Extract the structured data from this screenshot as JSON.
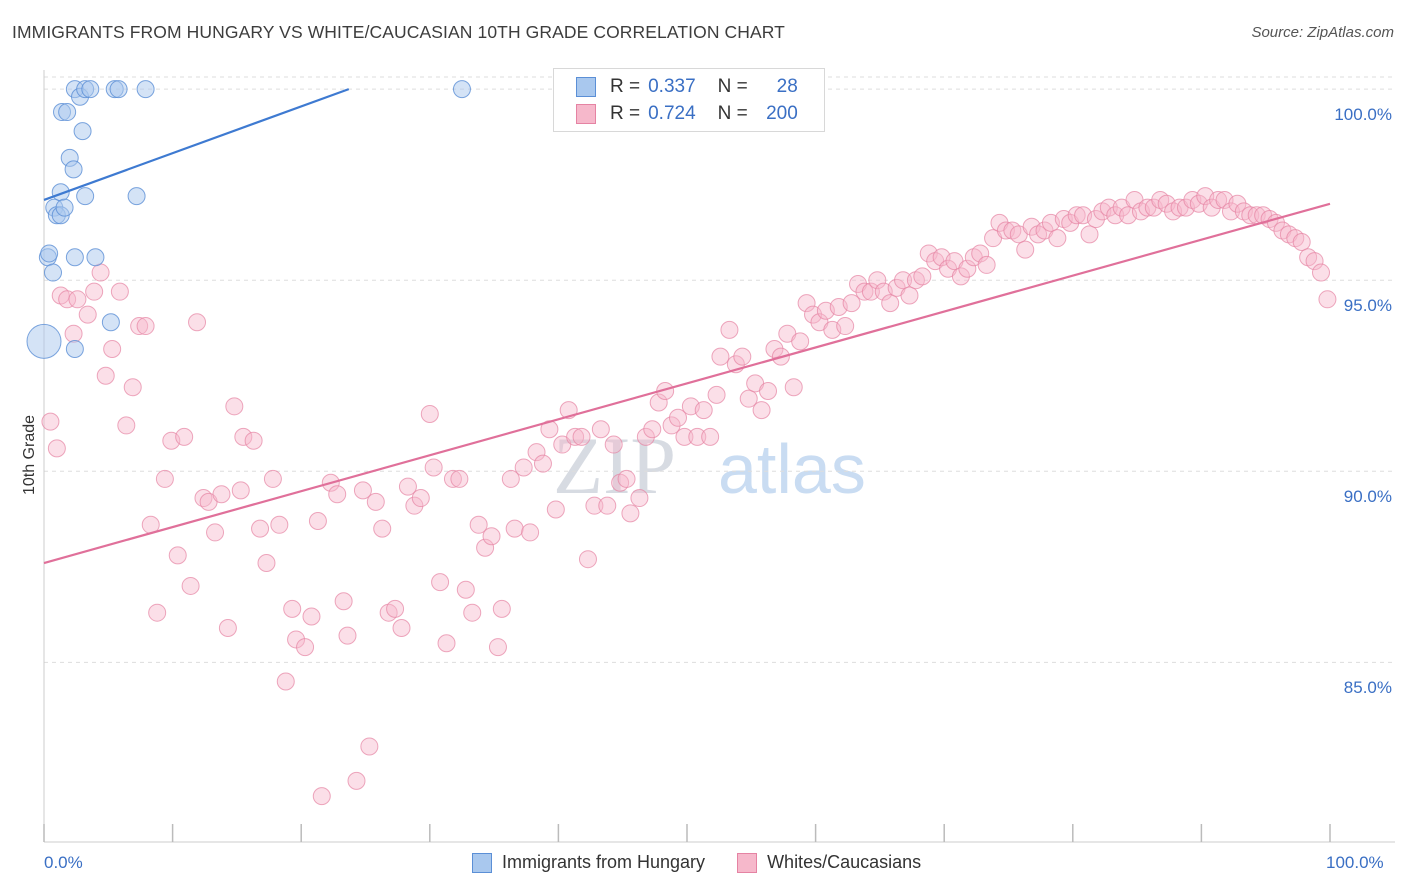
{
  "header": {
    "title": "IMMIGRANTS FROM HUNGARY VS WHITE/CAUCASIAN 10TH GRADE CORRELATION CHART",
    "source": "Source: ZipAtlas.com"
  },
  "watermark": {
    "zip": "ZIP",
    "atlas": "atlas"
  },
  "legend_top": {
    "rows": [
      {
        "r_label": "R =",
        "r_value": "0.337",
        "n_label": "N =",
        "n_value": "28"
      },
      {
        "r_label": "R =",
        "r_value": "0.724",
        "n_label": "N =",
        "n_value": "200"
      }
    ]
  },
  "legend_bottom": {
    "items": [
      "Immigrants from Hungary",
      "Whites/Caucasians"
    ]
  },
  "colors": {
    "blue_fill": "#a9c8ee",
    "blue_stroke": "#5b8fd6",
    "blue_line": "#3e7ad1",
    "pink_fill": "#f6b8cb",
    "pink_stroke": "#e583a3",
    "pink_line": "#e0709a",
    "tick_text": "#3a6fc4",
    "grid": "#dddddd"
  },
  "chart_data": {
    "type": "scatter",
    "title": "IMMIGRANTS FROM HUNGARY VS WHITE/CAUCASIAN 10TH GRADE CORRELATION CHART",
    "xlabel": "",
    "ylabel": "10th Grade",
    "xlim": [
      0,
      100
    ],
    "ylim": [
      80.3,
      100.5
    ],
    "x_tick_labels": [
      "0.0%",
      "100.0%"
    ],
    "y_ticks": [
      85,
      90,
      95,
      100
    ],
    "y_tick_labels": [
      "85.0%",
      "90.0%",
      "95.0%",
      "100.0%"
    ],
    "grid": true,
    "legend_position": "top-center",
    "series": [
      {
        "name": "Immigrants from Hungary",
        "color": "#a9c8ee",
        "r": 0.337,
        "n": 28,
        "trend": {
          "x": [
            0,
            23.7
          ],
          "y": [
            97.1,
            100.0
          ]
        },
        "points": [
          [
            0,
            93.4,
            3
          ],
          [
            0.3,
            95.6,
            1
          ],
          [
            0.4,
            95.7,
            1
          ],
          [
            0.7,
            95.2,
            1
          ],
          [
            0.8,
            96.9,
            1
          ],
          [
            1.0,
            96.7,
            1
          ],
          [
            1.3,
            96.7,
            1
          ],
          [
            1.3,
            97.3,
            1
          ],
          [
            1.4,
            99.4,
            1
          ],
          [
            1.6,
            96.9,
            1
          ],
          [
            1.8,
            99.4,
            1
          ],
          [
            2.0,
            98.2,
            1
          ],
          [
            2.3,
            97.9,
            1
          ],
          [
            2.4,
            95.6,
            1
          ],
          [
            2.4,
            93.2,
            1
          ],
          [
            2.4,
            100.0,
            1
          ],
          [
            2.8,
            99.8,
            1
          ],
          [
            3.0,
            98.9,
            1
          ],
          [
            3.2,
            100.0,
            1
          ],
          [
            3.2,
            97.2,
            1
          ],
          [
            3.6,
            100.0,
            1
          ],
          [
            4.0,
            95.6,
            1
          ],
          [
            5.2,
            93.9,
            1
          ],
          [
            5.5,
            100.0,
            1
          ],
          [
            5.8,
            100.0,
            1
          ],
          [
            7.2,
            97.2,
            1
          ],
          [
            7.9,
            100.0,
            1
          ],
          [
            32.5,
            100.0,
            1
          ]
        ]
      },
      {
        "name": "Whites/Caucasians",
        "color": "#f6b8cb",
        "r": 0.724,
        "n": 200,
        "trend": {
          "x": [
            0,
            100
          ],
          "y": [
            87.6,
            97.0
          ]
        },
        "points": [
          [
            0.5,
            91.3
          ],
          [
            1.0,
            90.6
          ],
          [
            1.3,
            94.6
          ],
          [
            1.8,
            94.5
          ],
          [
            2.3,
            93.6
          ],
          [
            2.6,
            94.5
          ],
          [
            3.4,
            94.1
          ],
          [
            3.9,
            94.7
          ],
          [
            4.4,
            95.2
          ],
          [
            4.8,
            92.5
          ],
          [
            5.3,
            93.2
          ],
          [
            5.9,
            94.7
          ],
          [
            6.4,
            91.2
          ],
          [
            6.9,
            92.2
          ],
          [
            7.4,
            93.8
          ],
          [
            7.9,
            93.8
          ],
          [
            8.3,
            88.6
          ],
          [
            8.8,
            86.3
          ],
          [
            9.4,
            89.8
          ],
          [
            9.9,
            90.8
          ],
          [
            10.4,
            87.8
          ],
          [
            10.9,
            90.9
          ],
          [
            11.4,
            87.0
          ],
          [
            11.9,
            93.9
          ],
          [
            12.4,
            89.3
          ],
          [
            12.8,
            89.2
          ],
          [
            13.3,
            88.4
          ],
          [
            13.8,
            89.4
          ],
          [
            14.3,
            85.9
          ],
          [
            14.8,
            91.7
          ],
          [
            15.3,
            89.5
          ],
          [
            15.5,
            90.9
          ],
          [
            16.3,
            90.8
          ],
          [
            16.8,
            88.5
          ],
          [
            17.3,
            87.6
          ],
          [
            17.8,
            89.8
          ],
          [
            18.3,
            88.6
          ],
          [
            18.8,
            84.5
          ],
          [
            19.3,
            86.4
          ],
          [
            19.6,
            85.6
          ],
          [
            20.3,
            85.4
          ],
          [
            20.8,
            86.2
          ],
          [
            21.3,
            88.7
          ],
          [
            21.6,
            81.5
          ],
          [
            22.3,
            89.7
          ],
          [
            22.8,
            89.4
          ],
          [
            23.3,
            86.6
          ],
          [
            23.6,
            85.7
          ],
          [
            24.3,
            81.9
          ],
          [
            24.8,
            89.5
          ],
          [
            25.3,
            82.8
          ],
          [
            25.8,
            89.2
          ],
          [
            26.3,
            88.5
          ],
          [
            26.8,
            86.3
          ],
          [
            27.3,
            86.4
          ],
          [
            27.8,
            85.9
          ],
          [
            28.3,
            89.6
          ],
          [
            28.8,
            89.1
          ],
          [
            29.3,
            89.3
          ],
          [
            30.0,
            91.5
          ],
          [
            30.3,
            90.1
          ],
          [
            30.8,
            87.1
          ],
          [
            31.3,
            85.5
          ],
          [
            31.8,
            89.8
          ],
          [
            32.3,
            89.8
          ],
          [
            32.8,
            86.9
          ],
          [
            33.3,
            86.3
          ],
          [
            33.8,
            88.6
          ],
          [
            34.3,
            88.0
          ],
          [
            34.8,
            88.3
          ],
          [
            35.3,
            85.4
          ],
          [
            35.6,
            86.4
          ],
          [
            36.3,
            89.8
          ],
          [
            36.6,
            88.5
          ],
          [
            37.3,
            90.1
          ],
          [
            37.8,
            88.4
          ],
          [
            38.3,
            90.5
          ],
          [
            38.8,
            90.2
          ],
          [
            39.3,
            91.1
          ],
          [
            39.8,
            89.0
          ],
          [
            40.3,
            90.7
          ],
          [
            40.8,
            91.6
          ],
          [
            41.3,
            90.9
          ],
          [
            41.8,
            90.9
          ],
          [
            42.3,
            87.7
          ],
          [
            42.8,
            89.1
          ],
          [
            43.3,
            91.1
          ],
          [
            43.8,
            89.1
          ],
          [
            44.3,
            90.7
          ],
          [
            44.8,
            89.7
          ],
          [
            45.3,
            89.8
          ],
          [
            45.6,
            88.9
          ],
          [
            46.3,
            89.3
          ],
          [
            46.8,
            90.9
          ],
          [
            47.3,
            91.1
          ],
          [
            47.8,
            91.8
          ],
          [
            48.3,
            92.1
          ],
          [
            48.8,
            91.2
          ],
          [
            49.3,
            91.4
          ],
          [
            49.8,
            90.9
          ],
          [
            50.3,
            91.7
          ],
          [
            50.8,
            90.9
          ],
          [
            51.3,
            91.6
          ],
          [
            51.8,
            90.9
          ],
          [
            52.3,
            92.0
          ],
          [
            52.6,
            93.0
          ],
          [
            53.3,
            93.7
          ],
          [
            53.8,
            92.8
          ],
          [
            54.3,
            93.0
          ],
          [
            54.8,
            91.9
          ],
          [
            55.3,
            92.3
          ],
          [
            55.8,
            91.6
          ],
          [
            56.3,
            92.1
          ],
          [
            56.8,
            93.2
          ],
          [
            57.3,
            93.0
          ],
          [
            57.8,
            93.6
          ],
          [
            58.3,
            92.2
          ],
          [
            58.8,
            93.4
          ],
          [
            59.3,
            94.4
          ],
          [
            59.8,
            94.1
          ],
          [
            60.3,
            93.9
          ],
          [
            60.8,
            94.2
          ],
          [
            61.3,
            93.7
          ],
          [
            61.8,
            94.3
          ],
          [
            62.3,
            93.8
          ],
          [
            62.8,
            94.4
          ],
          [
            63.3,
            94.9
          ],
          [
            63.8,
            94.7
          ],
          [
            64.3,
            94.7
          ],
          [
            64.8,
            95.0
          ],
          [
            65.3,
            94.7
          ],
          [
            65.8,
            94.4
          ],
          [
            66.3,
            94.8
          ],
          [
            66.8,
            95.0
          ],
          [
            67.3,
            94.6
          ],
          [
            67.8,
            95.0
          ],
          [
            68.3,
            95.1
          ],
          [
            68.8,
            95.7
          ],
          [
            69.3,
            95.5
          ],
          [
            69.8,
            95.6
          ],
          [
            70.3,
            95.3
          ],
          [
            70.8,
            95.5
          ],
          [
            71.3,
            95.1
          ],
          [
            71.8,
            95.3
          ],
          [
            72.3,
            95.6
          ],
          [
            72.8,
            95.7
          ],
          [
            73.3,
            95.4
          ],
          [
            73.8,
            96.1
          ],
          [
            74.3,
            96.5
          ],
          [
            74.8,
            96.3
          ],
          [
            75.3,
            96.3
          ],
          [
            75.8,
            96.2
          ],
          [
            76.3,
            95.8
          ],
          [
            76.8,
            96.4
          ],
          [
            77.3,
            96.2
          ],
          [
            77.8,
            96.3
          ],
          [
            78.3,
            96.5
          ],
          [
            78.8,
            96.1
          ],
          [
            79.3,
            96.6
          ],
          [
            79.8,
            96.5
          ],
          [
            80.3,
            96.7
          ],
          [
            80.8,
            96.7
          ],
          [
            81.3,
            96.2
          ],
          [
            81.8,
            96.6
          ],
          [
            82.3,
            96.8
          ],
          [
            82.8,
            96.9
          ],
          [
            83.3,
            96.7
          ],
          [
            83.8,
            96.9
          ],
          [
            84.3,
            96.7
          ],
          [
            84.8,
            97.1
          ],
          [
            85.3,
            96.8
          ],
          [
            85.8,
            96.9
          ],
          [
            86.3,
            96.9
          ],
          [
            86.8,
            97.1
          ],
          [
            87.3,
            97.0
          ],
          [
            87.8,
            96.8
          ],
          [
            88.3,
            96.9
          ],
          [
            88.8,
            96.9
          ],
          [
            89.3,
            97.1
          ],
          [
            89.8,
            97.0
          ],
          [
            90.3,
            97.2
          ],
          [
            90.8,
            96.9
          ],
          [
            91.3,
            97.1
          ],
          [
            91.8,
            97.1
          ],
          [
            92.3,
            96.8
          ],
          [
            92.8,
            97.0
          ],
          [
            93.3,
            96.8
          ],
          [
            93.8,
            96.7
          ],
          [
            94.3,
            96.7
          ],
          [
            94.8,
            96.7
          ],
          [
            95.3,
            96.6
          ],
          [
            95.8,
            96.5
          ],
          [
            96.3,
            96.3
          ],
          [
            96.8,
            96.2
          ],
          [
            97.3,
            96.1
          ],
          [
            97.8,
            96.0
          ],
          [
            98.3,
            95.6
          ],
          [
            98.8,
            95.5
          ],
          [
            99.3,
            95.2
          ],
          [
            99.8,
            94.5
          ]
        ]
      }
    ]
  }
}
